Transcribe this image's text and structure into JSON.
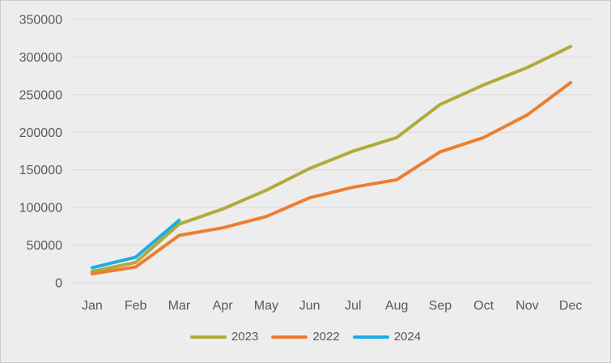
{
  "chart_data": {
    "type": "line",
    "title": "",
    "xlabel": "",
    "ylabel": "",
    "categories": [
      "Jan",
      "Feb",
      "Mar",
      "Apr",
      "May",
      "Jun",
      "Jul",
      "Aug",
      "Sep",
      "Oct",
      "Nov",
      "Dec"
    ],
    "series": [
      {
        "name": "2023",
        "color": "#B0AB38",
        "values": [
          15000,
          27000,
          78000,
          98000,
          123000,
          152000,
          175000,
          193000,
          237000,
          263000,
          286000,
          314000
        ]
      },
      {
        "name": "2022",
        "color": "#ED7D31",
        "values": [
          12000,
          21000,
          63000,
          73000,
          88000,
          113000,
          127000,
          137000,
          174000,
          193000,
          223000,
          266000
        ]
      },
      {
        "name": "2024",
        "color": "#1CADE4",
        "values": [
          20000,
          34000,
          83000,
          null,
          null,
          null,
          null,
          null,
          null,
          null,
          null,
          null
        ]
      }
    ],
    "ylim": [
      0,
      350000
    ],
    "y_tick_step": 50000,
    "y_ticks": [
      "0",
      "50000",
      "100000",
      "150000",
      "200000",
      "250000",
      "300000",
      "350000"
    ],
    "grid": true,
    "legend_position": "bottom",
    "legend_entries": [
      "2023",
      "2022",
      "2024"
    ]
  },
  "colors": {
    "background": "#EDEDED",
    "gridline": "#D9D9D9",
    "tick_text": "#595959",
    "frame_border": "#C7CBCE"
  }
}
